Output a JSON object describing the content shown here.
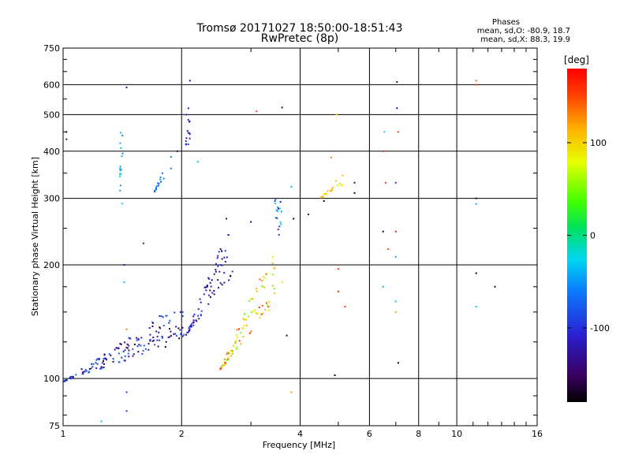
{
  "chart_data": {
    "type": "scatter",
    "title": "Tromsø 20171027 18:50:00-18:51:43",
    "subtitle": "RwPretec (8p)",
    "xlabel": "Frequency [MHz]",
    "ylabel": "Stationary phase Virtual Height [km]",
    "xscale": "log",
    "yscale": "log",
    "xlim": [
      1,
      16
    ],
    "ylim": [
      75,
      750
    ],
    "xticks": [
      1,
      2,
      4,
      6,
      8,
      10,
      16
    ],
    "yticks": [
      75,
      100,
      200,
      300,
      400,
      500,
      600,
      750
    ],
    "grid": true,
    "stats": {
      "heading": "Phases",
      "line_o": "mean, sd,O: -80.9, 18.7",
      "line_x": "mean, sd,X: 88.3, 19.9"
    },
    "colorbar": {
      "label": "[deg]",
      "range": [
        -180,
        180
      ],
      "ticks": [
        -100,
        0,
        100
      ]
    },
    "bands": [
      {
        "name": "low-frequency trace",
        "x_range": [
          1.0,
          2.05
        ],
        "y_range": [
          98,
          150
        ],
        "phase": [
          -170,
          -60
        ],
        "count": 160
      },
      {
        "name": "F-region blue rise",
        "x_range": [
          2.05,
          2.7
        ],
        "y_range": [
          130,
          240
        ],
        "phase": [
          -160,
          -90
        ],
        "count": 80
      },
      {
        "name": "colored ridge",
        "x_range": [
          2.5,
          3.5
        ],
        "y_range": [
          105,
          210
        ],
        "phase": [
          40,
          160
        ],
        "count": 90
      },
      {
        "name": "yellow cluster",
        "x_range": [
          4.5,
          5.2
        ],
        "y_range": [
          300,
          345
        ],
        "phase": [
          80,
          120
        ],
        "count": 20
      },
      {
        "name": "vertical streak 2.1",
        "x_range": [
          2.05,
          2.1
        ],
        "y_range": [
          410,
          520
        ],
        "phase": [
          -130,
          -100
        ],
        "count": 15
      },
      {
        "name": "vertical streak 1.4",
        "x_range": [
          1.39,
          1.42
        ],
        "y_range": [
          270,
          470
        ],
        "phase": [
          -60,
          -20
        ],
        "count": 16
      },
      {
        "name": "cluster 1.8",
        "x_range": [
          1.7,
          1.9
        ],
        "y_range": [
          310,
          400
        ],
        "phase": [
          -80,
          -40
        ],
        "count": 18
      },
      {
        "name": "blue-green column 3.5",
        "x_range": [
          3.45,
          3.6
        ],
        "y_range": [
          240,
          300
        ],
        "phase": [
          -130,
          -20
        ],
        "count": 18
      }
    ],
    "outliers": [
      {
        "x": 1.45,
        "y": 590,
        "phase": -140
      },
      {
        "x": 2.1,
        "y": 615,
        "phase": -140
      },
      {
        "x": 3.6,
        "y": 522,
        "phase": -160
      },
      {
        "x": 3.1,
        "y": 510,
        "phase": 150
      },
      {
        "x": 4.95,
        "y": 500,
        "phase": 100
      },
      {
        "x": 7.05,
        "y": 610,
        "phase": -150
      },
      {
        "x": 7.05,
        "y": 520,
        "phase": -150
      },
      {
        "x": 6.55,
        "y": 450,
        "phase": -20
      },
      {
        "x": 7.1,
        "y": 450,
        "phase": 150
      },
      {
        "x": 6.5,
        "y": 400,
        "phase": 160
      },
      {
        "x": 6.6,
        "y": 330,
        "phase": 160
      },
      {
        "x": 7.0,
        "y": 330,
        "phase": -100
      },
      {
        "x": 6.5,
        "y": 245,
        "phase": -170
      },
      {
        "x": 7.0,
        "y": 245,
        "phase": 170
      },
      {
        "x": 6.7,
        "y": 220,
        "phase": 150
      },
      {
        "x": 7.0,
        "y": 210,
        "phase": -40
      },
      {
        "x": 6.5,
        "y": 175,
        "phase": -40
      },
      {
        "x": 7.0,
        "y": 160,
        "phase": -30
      },
      {
        "x": 7.0,
        "y": 150,
        "phase": 120
      },
      {
        "x": 7.1,
        "y": 110,
        "phase": -170
      },
      {
        "x": 11.2,
        "y": 615,
        "phase": 140
      },
      {
        "x": 11.2,
        "y": 600,
        "phase": 160
      },
      {
        "x": 11.2,
        "y": 300,
        "phase": -160
      },
      {
        "x": 11.2,
        "y": 290,
        "phase": -40
      },
      {
        "x": 11.2,
        "y": 190,
        "phase": -170
      },
      {
        "x": 11.2,
        "y": 155,
        "phase": -20
      },
      {
        "x": 12.5,
        "y": 175,
        "phase": -170
      },
      {
        "x": 5.0,
        "y": 195,
        "phase": 160
      },
      {
        "x": 5.0,
        "y": 170,
        "phase": 160
      },
      {
        "x": 5.2,
        "y": 155,
        "phase": 150
      },
      {
        "x": 4.9,
        "y": 102,
        "phase": -170
      },
      {
        "x": 3.8,
        "y": 92,
        "phase": 120
      },
      {
        "x": 1.45,
        "y": 92,
        "phase": -100
      },
      {
        "x": 1.45,
        "y": 82,
        "phase": -100
      },
      {
        "x": 1.25,
        "y": 77,
        "phase": -40
      },
      {
        "x": 1.45,
        "y": 135,
        "phase": 130
      },
      {
        "x": 1.43,
        "y": 180,
        "phase": -20
      },
      {
        "x": 1.43,
        "y": 200,
        "phase": -130
      },
      {
        "x": 1.6,
        "y": 228,
        "phase": -110
      },
      {
        "x": 1.02,
        "y": 450,
        "phase": -140
      },
      {
        "x": 1.02,
        "y": 430,
        "phase": -140
      },
      {
        "x": 1.0,
        "y": 325,
        "phase": -40
      },
      {
        "x": 1.95,
        "y": 400,
        "phase": -160
      },
      {
        "x": 2.2,
        "y": 375,
        "phase": -40
      },
      {
        "x": 2.6,
        "y": 265,
        "phase": -150
      },
      {
        "x": 3.0,
        "y": 260,
        "phase": -150
      },
      {
        "x": 3.7,
        "y": 130,
        "phase": -170
      },
      {
        "x": 3.8,
        "y": 322,
        "phase": -40
      },
      {
        "x": 3.85,
        "y": 265,
        "phase": -170
      },
      {
        "x": 4.2,
        "y": 272,
        "phase": -170
      },
      {
        "x": 4.6,
        "y": 295,
        "phase": -170
      },
      {
        "x": 5.5,
        "y": 310,
        "phase": -170
      },
      {
        "x": 5.5,
        "y": 330,
        "phase": -160
      },
      {
        "x": 4.8,
        "y": 385,
        "phase": 130
      },
      {
        "x": 3.6,
        "y": 180,
        "phase": 90
      }
    ]
  }
}
